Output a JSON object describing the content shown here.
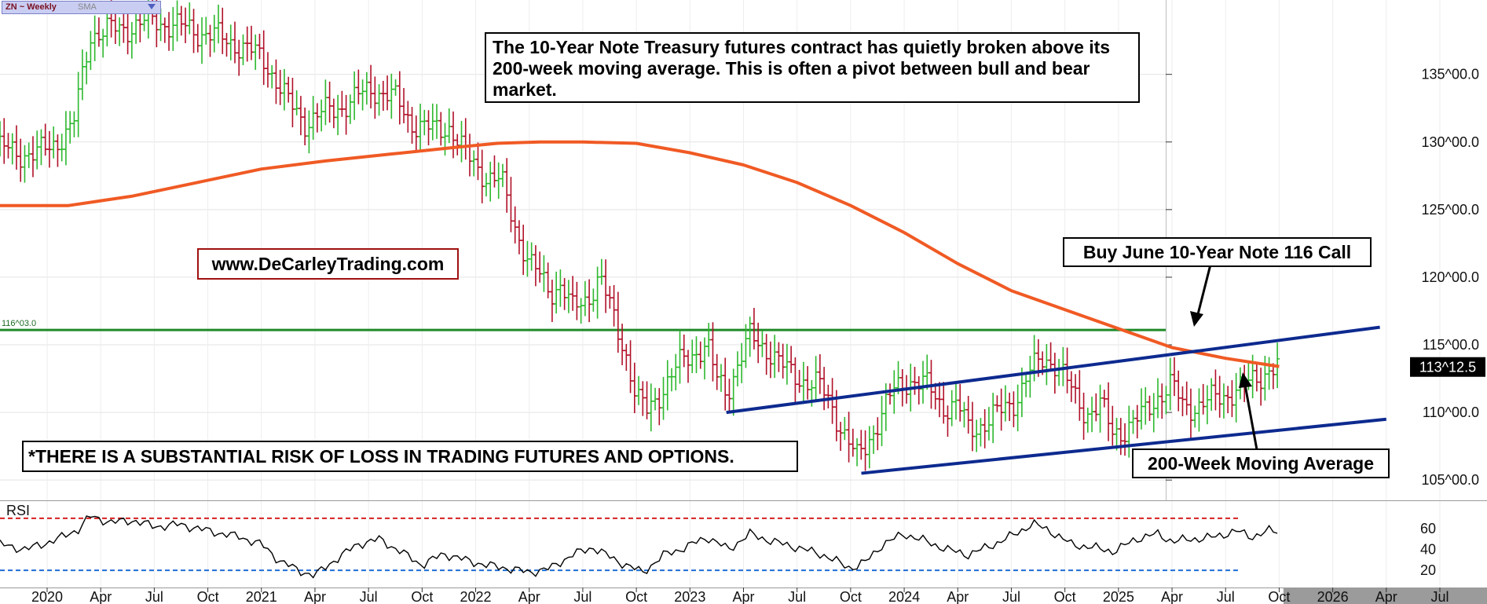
{
  "header": {
    "symbol": "ZN ~ Weekly",
    "indicator": "SMA"
  },
  "annotations": {
    "headline": "The 10-Year Note Treasury futures contract has quietly broken above its 200-week moving average. This is often a pivot between bull and bear market.",
    "website": "www.DeCarleyTrading.com",
    "call": "Buy June 10-Year Note 116 Call",
    "ma": "200-Week Moving Average",
    "risk": "*THERE IS A SUBSTANTIAL RISK OF LOSS IN TRADING FUTURES AND OPTIONS."
  },
  "colors": {
    "up_bar": "#2db82d",
    "down_bar": "#b01028",
    "ma_line": "#f05a24",
    "horizontal_line": "#1e8a28",
    "channel": "#0d2a8f",
    "rsi_line": "#000000",
    "rsi_upper": "#d42020",
    "rsi_lower": "#1f6fd6",
    "price_tag_bg": "#000000"
  },
  "chart_data": {
    "type": "bar",
    "title": "ZN ~ Weekly",
    "price_axis": {
      "ticks": [
        105,
        110,
        115,
        120,
        125,
        130,
        135
      ],
      "tick_labels": [
        "105^00.0",
        "110^00.0",
        "115^00.0",
        "120^00.0",
        "125^00.0",
        "130^00.0",
        "135^00.0"
      ],
      "ylim": [
        103.5,
        140.5
      ]
    },
    "x_axis": {
      "ticks": [
        2020.0,
        2020.25,
        2020.5,
        2020.75,
        2021.0,
        2021.25,
        2021.5,
        2021.75,
        2022.0,
        2022.25,
        2022.5,
        2022.75,
        2023.0,
        2023.25,
        2023.5,
        2023.75,
        2024.0,
        2024.25,
        2024.5,
        2024.75,
        2025.0,
        2025.25,
        2025.5,
        2025.75,
        2026.0,
        2026.25,
        2026.5
      ],
      "tick_labels": [
        "2020",
        "Apr",
        "Jul",
        "Oct",
        "2021",
        "Apr",
        "Jul",
        "Oct",
        "2022",
        "Apr",
        "Jul",
        "Oct",
        "2023",
        "Apr",
        "Jul",
        "Oct",
        "2024",
        "Apr",
        "Jul",
        "Oct",
        "2025",
        "Apr",
        "Jul",
        "Oct",
        "2026",
        "Apr",
        "Jul"
      ],
      "xlim": [
        2019.78,
        2026.72
      ],
      "future_from": 2025.77
    },
    "price_path": [
      [
        2019.78,
        129.5
      ],
      [
        2019.95,
        129.0
      ],
      [
        2020.12,
        131.0
      ],
      [
        2020.2,
        138.0
      ],
      [
        2020.35,
        138.4
      ],
      [
        2020.5,
        139.0
      ],
      [
        2020.62,
        138.5
      ],
      [
        2020.75,
        138.0
      ],
      [
        2020.88,
        137.3
      ],
      [
        2021.02,
        136.0
      ],
      [
        2021.12,
        133.0
      ],
      [
        2021.2,
        131.5
      ],
      [
        2021.3,
        132.2
      ],
      [
        2021.42,
        133.0
      ],
      [
        2021.52,
        134.0
      ],
      [
        2021.62,
        133.2
      ],
      [
        2021.7,
        131.5
      ],
      [
        2021.8,
        130.8
      ],
      [
        2021.88,
        131.2
      ],
      [
        2021.95,
        129.0
      ],
      [
        2022.05,
        127.5
      ],
      [
        2022.12,
        127.0
      ],
      [
        2022.18,
        124.0
      ],
      [
        2022.25,
        121.0
      ],
      [
        2022.35,
        119.0
      ],
      [
        2022.4,
        119.5
      ],
      [
        2022.45,
        117.5
      ],
      [
        2022.52,
        118.5
      ],
      [
        2022.58,
        120.0
      ],
      [
        2022.62,
        118.0
      ],
      [
        2022.7,
        114.5
      ],
      [
        2022.75,
        111.0
      ],
      [
        2022.8,
        110.0
      ],
      [
        2022.88,
        112.0
      ],
      [
        2022.95,
        113.5
      ],
      [
        2023.02,
        114.5
      ],
      [
        2023.08,
        115.0
      ],
      [
        2023.12,
        112.5
      ],
      [
        2023.17,
        111.5
      ],
      [
        2023.22,
        113.5
      ],
      [
        2023.28,
        115.5
      ],
      [
        2023.33,
        115.0
      ],
      [
        2023.38,
        114.5
      ],
      [
        2023.45,
        113.0
      ],
      [
        2023.52,
        112.5
      ],
      [
        2023.6,
        112.0
      ],
      [
        2023.66,
        110.5
      ],
      [
        2023.72,
        108.5
      ],
      [
        2023.78,
        106.5
      ],
      [
        2023.82,
        107.5
      ],
      [
        2023.88,
        109.5
      ],
      [
        2023.95,
        111.5
      ],
      [
        2024.02,
        112.5
      ],
      [
        2024.1,
        112.0
      ],
      [
        2024.18,
        110.5
      ],
      [
        2024.25,
        110.5
      ],
      [
        2024.3,
        108.7
      ],
      [
        2024.38,
        109.3
      ],
      [
        2024.45,
        110.0
      ],
      [
        2024.52,
        111.0
      ],
      [
        2024.58,
        112.8
      ],
      [
        2024.65,
        114.0
      ],
      [
        2024.7,
        113.8
      ],
      [
        2024.75,
        112.5
      ],
      [
        2024.8,
        111.0
      ],
      [
        2024.85,
        110.0
      ],
      [
        2024.92,
        110.5
      ],
      [
        2024.97,
        108.5
      ],
      [
        2025.02,
        108.7
      ],
      [
        2025.1,
        109.5
      ],
      [
        2025.18,
        111.2
      ],
      [
        2025.25,
        112.0
      ],
      [
        2025.3,
        110.5
      ],
      [
        2025.38,
        110.5
      ],
      [
        2025.45,
        111.0
      ],
      [
        2025.52,
        111.5
      ],
      [
        2025.6,
        112.0
      ],
      [
        2025.65,
        112.6
      ],
      [
        2025.7,
        113.2
      ],
      [
        2025.75,
        113.4
      ]
    ],
    "moving_average": {
      "name": "200-Week Moving Average",
      "points": [
        [
          2019.78,
          125.3
        ],
        [
          2020.1,
          125.3
        ],
        [
          2020.4,
          126.0
        ],
        [
          2020.7,
          127.0
        ],
        [
          2021.0,
          128.0
        ],
        [
          2021.3,
          128.6
        ],
        [
          2021.6,
          129.1
        ],
        [
          2021.9,
          129.6
        ],
        [
          2022.1,
          129.9
        ],
        [
          2022.3,
          130.0
        ],
        [
          2022.5,
          130.0
        ],
        [
          2022.75,
          129.9
        ],
        [
          2023.0,
          129.2
        ],
        [
          2023.25,
          128.3
        ],
        [
          2023.5,
          127.0
        ],
        [
          2023.75,
          125.3
        ],
        [
          2024.0,
          123.3
        ],
        [
          2024.25,
          121.0
        ],
        [
          2024.5,
          119.0
        ],
        [
          2024.75,
          117.6
        ],
        [
          2025.0,
          116.2
        ],
        [
          2025.25,
          114.8
        ],
        [
          2025.5,
          114.0
        ],
        [
          2025.75,
          113.4
        ]
      ]
    },
    "horizontal_level": {
      "value": 116.1,
      "label": "116^03.0"
    },
    "channel_upper": [
      [
        2023.17,
        110.0
      ],
      [
        2026.22,
        116.3
      ]
    ],
    "channel_lower": [
      [
        2023.8,
        105.5
      ],
      [
        2026.25,
        109.5
      ]
    ],
    "last_price": {
      "value": 113.39,
      "label": "113^12.5"
    },
    "rsi": {
      "label": "RSI",
      "upper": 70,
      "lower": 20,
      "ticks": [
        20,
        40,
        60
      ],
      "tick_labels": [
        "20",
        "40",
        "60"
      ],
      "ylim": [
        5,
        85
      ],
      "path": [
        [
          2019.78,
          45
        ],
        [
          2019.9,
          40
        ],
        [
          2020.05,
          50
        ],
        [
          2020.15,
          60
        ],
        [
          2020.2,
          72
        ],
        [
          2020.3,
          66
        ],
        [
          2020.4,
          68
        ],
        [
          2020.5,
          62
        ],
        [
          2020.62,
          64
        ],
        [
          2020.75,
          58
        ],
        [
          2020.9,
          52
        ],
        [
          2021.0,
          45
        ],
        [
          2021.08,
          30
        ],
        [
          2021.17,
          20
        ],
        [
          2021.25,
          15
        ],
        [
          2021.33,
          28
        ],
        [
          2021.45,
          45
        ],
        [
          2021.55,
          50
        ],
        [
          2021.65,
          38
        ],
        [
          2021.75,
          25
        ],
        [
          2021.85,
          36
        ],
        [
          2021.95,
          30
        ],
        [
          2022.05,
          25
        ],
        [
          2022.15,
          22
        ],
        [
          2022.25,
          18
        ],
        [
          2022.35,
          22
        ],
        [
          2022.45,
          35
        ],
        [
          2022.55,
          42
        ],
        [
          2022.65,
          30
        ],
        [
          2022.78,
          18
        ],
        [
          2022.88,
          35
        ],
        [
          2022.98,
          42
        ],
        [
          2023.08,
          52
        ],
        [
          2023.18,
          40
        ],
        [
          2023.28,
          55
        ],
        [
          2023.38,
          48
        ],
        [
          2023.5,
          42
        ],
        [
          2023.62,
          35
        ],
        [
          2023.75,
          22
        ],
        [
          2023.82,
          28
        ],
        [
          2023.9,
          45
        ],
        [
          2024.0,
          55
        ],
        [
          2024.1,
          48
        ],
        [
          2024.2,
          40
        ],
        [
          2024.3,
          35
        ],
        [
          2024.42,
          45
        ],
        [
          2024.52,
          55
        ],
        [
          2024.6,
          65
        ],
        [
          2024.68,
          58
        ],
        [
          2024.78,
          45
        ],
        [
          2024.88,
          42
        ],
        [
          2024.98,
          38
        ],
        [
          2025.08,
          50
        ],
        [
          2025.18,
          55
        ],
        [
          2025.25,
          48
        ],
        [
          2025.35,
          50
        ],
        [
          2025.45,
          52
        ],
        [
          2025.55,
          58
        ],
        [
          2025.62,
          52
        ],
        [
          2025.7,
          58
        ],
        [
          2025.75,
          57
        ]
      ]
    }
  }
}
